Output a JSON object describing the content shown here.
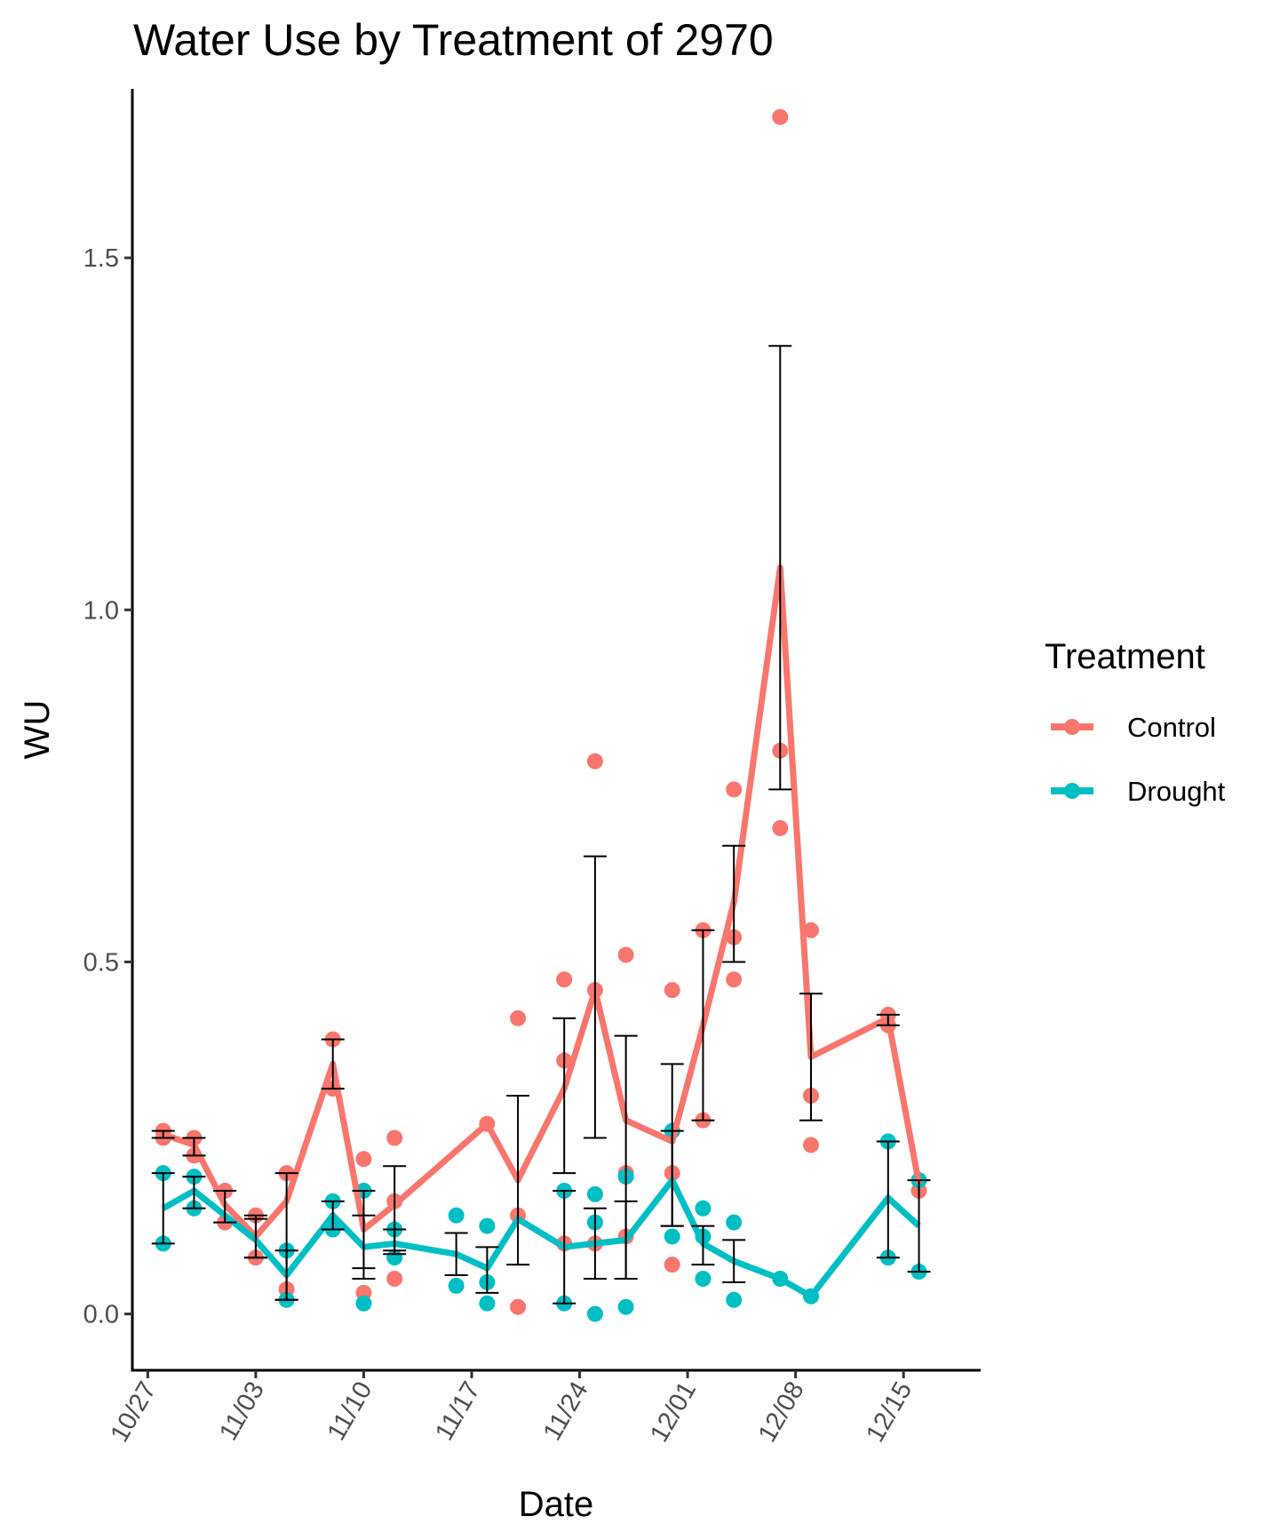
{
  "chart_data": {
    "type": "line",
    "title": "Water Use by Treatment of  2970",
    "xlabel": "Date",
    "ylabel": "WU",
    "ylim": [
      -0.08,
      1.74
    ],
    "xlim": [
      "2023-10-26",
      "2023-12-20"
    ],
    "y_ticks": [
      0.0,
      0.5,
      1.0,
      1.5
    ],
    "y_tick_labels": [
      "0.0",
      "0.5",
      "1.0",
      "1.5"
    ],
    "x_ticks": [
      "2023-10-27",
      "2023-11-03",
      "2023-11-10",
      "2023-11-17",
      "2023-11-24",
      "2023-12-01",
      "2023-12-08",
      "2023-12-15"
    ],
    "x_tick_labels": [
      "10/27",
      "11/03",
      "11/10",
      "11/17",
      "11/24",
      "12/01",
      "12/08",
      "12/15"
    ],
    "grid": false,
    "legend": {
      "title": "Treatment",
      "position": "right",
      "entries": [
        "Control",
        "Drought"
      ]
    },
    "series": [
      {
        "name": "Control",
        "color": "#F8766D",
        "means": [
          {
            "x": "2023-10-28",
            "y": 0.255
          },
          {
            "x": "2023-10-30",
            "y": 0.24
          },
          {
            "x": "2023-11-01",
            "y": 0.155
          },
          {
            "x": "2023-11-03",
            "y": 0.11
          },
          {
            "x": "2023-11-05",
            "y": 0.16
          },
          {
            "x": "2023-11-08",
            "y": 0.355
          },
          {
            "x": "2023-11-10",
            "y": 0.12
          },
          {
            "x": "2023-11-12",
            "y": 0.155
          },
          {
            "x": "2023-11-18",
            "y": 0.27
          },
          {
            "x": "2023-11-20",
            "y": 0.19
          },
          {
            "x": "2023-11-23",
            "y": 0.32
          },
          {
            "x": "2023-11-25",
            "y": 0.46
          },
          {
            "x": "2023-11-27",
            "y": 0.275
          },
          {
            "x": "2023-11-30",
            "y": 0.245
          },
          {
            "x": "2023-12-02",
            "y": 0.41
          },
          {
            "x": "2023-12-04",
            "y": 0.585
          },
          {
            "x": "2023-12-07",
            "y": 1.06
          },
          {
            "x": "2023-12-09",
            "y": 0.365
          },
          {
            "x": "2023-12-14",
            "y": 0.42
          },
          {
            "x": "2023-12-16",
            "y": 0.185
          }
        ],
        "errors": [
          {
            "x": "2023-10-28",
            "low": 0.25,
            "high": 0.26
          },
          {
            "x": "2023-10-30",
            "low": 0.225,
            "high": 0.25
          },
          {
            "x": "2023-11-01",
            "low": 0.13,
            "high": 0.175
          },
          {
            "x": "2023-11-03",
            "low": 0.08,
            "high": 0.14
          },
          {
            "x": "2023-11-05",
            "low": 0.02,
            "high": 0.2
          },
          {
            "x": "2023-11-08",
            "low": 0.32,
            "high": 0.39
          },
          {
            "x": "2023-11-10",
            "low": 0.05,
            "high": 0.14
          },
          {
            "x": "2023-11-12",
            "low": 0.09,
            "high": 0.21
          },
          {
            "x": "2023-11-20",
            "low": 0.07,
            "high": 0.31
          },
          {
            "x": "2023-11-23",
            "low": 0.2,
            "high": 0.42
          },
          {
            "x": "2023-11-25",
            "low": 0.25,
            "high": 0.65
          },
          {
            "x": "2023-11-27",
            "low": 0.05,
            "high": 0.395
          },
          {
            "x": "2023-11-30",
            "low": 0.125,
            "high": 0.355
          },
          {
            "x": "2023-12-02",
            "low": 0.275,
            "high": 0.545
          },
          {
            "x": "2023-12-04",
            "low": 0.5,
            "high": 0.665
          },
          {
            "x": "2023-12-07",
            "low": 0.745,
            "high": 1.375
          },
          {
            "x": "2023-12-09",
            "low": 0.275,
            "high": 0.455
          },
          {
            "x": "2023-12-14",
            "low": 0.41,
            "high": 0.425
          }
        ],
        "points": [
          {
            "x": "2023-10-28",
            "y": 0.26
          },
          {
            "x": "2023-10-28",
            "y": 0.25
          },
          {
            "x": "2023-10-30",
            "y": 0.25
          },
          {
            "x": "2023-10-30",
            "y": 0.225
          },
          {
            "x": "2023-11-01",
            "y": 0.175
          },
          {
            "x": "2023-11-01",
            "y": 0.13
          },
          {
            "x": "2023-11-03",
            "y": 0.14
          },
          {
            "x": "2023-11-03",
            "y": 0.08
          },
          {
            "x": "2023-11-05",
            "y": 0.2
          },
          {
            "x": "2023-11-05",
            "y": 0.035
          },
          {
            "x": "2023-11-08",
            "y": 0.39
          },
          {
            "x": "2023-11-08",
            "y": 0.32
          },
          {
            "x": "2023-11-10",
            "y": 0.22
          },
          {
            "x": "2023-11-10",
            "y": 0.03
          },
          {
            "x": "2023-11-12",
            "y": 0.25
          },
          {
            "x": "2023-11-12",
            "y": 0.16
          },
          {
            "x": "2023-11-12",
            "y": 0.05
          },
          {
            "x": "2023-11-18",
            "y": 0.27
          },
          {
            "x": "2023-11-20",
            "y": 0.42
          },
          {
            "x": "2023-11-20",
            "y": 0.14
          },
          {
            "x": "2023-11-20",
            "y": 0.01
          },
          {
            "x": "2023-11-23",
            "y": 0.475
          },
          {
            "x": "2023-11-23",
            "y": 0.36
          },
          {
            "x": "2023-11-23",
            "y": 0.1
          },
          {
            "x": "2023-11-25",
            "y": 0.785
          },
          {
            "x": "2023-11-25",
            "y": 0.46
          },
          {
            "x": "2023-11-25",
            "y": 0.1
          },
          {
            "x": "2023-11-27",
            "y": 0.51
          },
          {
            "x": "2023-11-27",
            "y": 0.2
          },
          {
            "x": "2023-11-27",
            "y": 0.11
          },
          {
            "x": "2023-11-30",
            "y": 0.46
          },
          {
            "x": "2023-11-30",
            "y": 0.2
          },
          {
            "x": "2023-11-30",
            "y": 0.07
          },
          {
            "x": "2023-12-02",
            "y": 0.545
          },
          {
            "x": "2023-12-02",
            "y": 0.275
          },
          {
            "x": "2023-12-04",
            "y": 0.745
          },
          {
            "x": "2023-12-04",
            "y": 0.535
          },
          {
            "x": "2023-12-04",
            "y": 0.475
          },
          {
            "x": "2023-12-07",
            "y": 1.7
          },
          {
            "x": "2023-12-07",
            "y": 0.8
          },
          {
            "x": "2023-12-07",
            "y": 0.69
          },
          {
            "x": "2023-12-09",
            "y": 0.545
          },
          {
            "x": "2023-12-09",
            "y": 0.31
          },
          {
            "x": "2023-12-09",
            "y": 0.24
          },
          {
            "x": "2023-12-14",
            "y": 0.425
          },
          {
            "x": "2023-12-14",
            "y": 0.41
          },
          {
            "x": "2023-12-16",
            "y": 0.175
          }
        ]
      },
      {
        "name": "Drought",
        "color": "#00BFC4",
        "means": [
          {
            "x": "2023-10-28",
            "y": 0.15
          },
          {
            "x": "2023-10-30",
            "y": 0.175
          },
          {
            "x": "2023-11-01",
            "y": 0.14
          },
          {
            "x": "2023-11-03",
            "y": 0.105
          },
          {
            "x": "2023-11-05",
            "y": 0.055
          },
          {
            "x": "2023-11-08",
            "y": 0.14
          },
          {
            "x": "2023-11-10",
            "y": 0.095
          },
          {
            "x": "2023-11-12",
            "y": 0.1
          },
          {
            "x": "2023-11-16",
            "y": 0.085
          },
          {
            "x": "2023-11-18",
            "y": 0.065
          },
          {
            "x": "2023-11-20",
            "y": 0.135
          },
          {
            "x": "2023-11-23",
            "y": 0.095
          },
          {
            "x": "2023-11-27",
            "y": 0.105
          },
          {
            "x": "2023-11-30",
            "y": 0.19
          },
          {
            "x": "2023-12-02",
            "y": 0.1
          },
          {
            "x": "2023-12-04",
            "y": 0.075
          },
          {
            "x": "2023-12-07",
            "y": 0.05
          },
          {
            "x": "2023-12-09",
            "y": 0.025
          },
          {
            "x": "2023-12-14",
            "y": 0.165
          },
          {
            "x": "2023-12-16",
            "y": 0.125
          }
        ],
        "errors": [
          {
            "x": "2023-10-28",
            "low": 0.1,
            "high": 0.2
          },
          {
            "x": "2023-10-30",
            "low": 0.15,
            "high": 0.195
          },
          {
            "x": "2023-11-03",
            "low": 0.08,
            "high": 0.135
          },
          {
            "x": "2023-11-05",
            "low": 0.02,
            "high": 0.09
          },
          {
            "x": "2023-11-08",
            "low": 0.12,
            "high": 0.16
          },
          {
            "x": "2023-11-10",
            "low": 0.065,
            "high": 0.175
          },
          {
            "x": "2023-11-12",
            "low": 0.085,
            "high": 0.12
          },
          {
            "x": "2023-11-16",
            "low": 0.055,
            "high": 0.115
          },
          {
            "x": "2023-11-18",
            "low": 0.03,
            "high": 0.095
          },
          {
            "x": "2023-11-23",
            "low": 0.015,
            "high": 0.175
          },
          {
            "x": "2023-11-25",
            "low": 0.05,
            "high": 0.15
          },
          {
            "x": "2023-11-27",
            "low": 0.05,
            "high": 0.16
          },
          {
            "x": "2023-11-30",
            "low": 0.125,
            "high": 0.26
          },
          {
            "x": "2023-12-02",
            "low": 0.07,
            "high": 0.125
          },
          {
            "x": "2023-12-04",
            "low": 0.045,
            "high": 0.105
          },
          {
            "x": "2023-12-14",
            "low": 0.08,
            "high": 0.245
          },
          {
            "x": "2023-12-16",
            "low": 0.06,
            "high": 0.19
          }
        ],
        "points": [
          {
            "x": "2023-10-28",
            "y": 0.2
          },
          {
            "x": "2023-10-28",
            "y": 0.1
          },
          {
            "x": "2023-10-30",
            "y": 0.195
          },
          {
            "x": "2023-10-30",
            "y": 0.15
          },
          {
            "x": "2023-11-05",
            "y": 0.09
          },
          {
            "x": "2023-11-05",
            "y": 0.02
          },
          {
            "x": "2023-11-08",
            "y": 0.16
          },
          {
            "x": "2023-11-08",
            "y": 0.12
          },
          {
            "x": "2023-11-10",
            "y": 0.175
          },
          {
            "x": "2023-11-10",
            "y": 0.015
          },
          {
            "x": "2023-11-12",
            "y": 0.12
          },
          {
            "x": "2023-11-12",
            "y": 0.08
          },
          {
            "x": "2023-11-16",
            "y": 0.14
          },
          {
            "x": "2023-11-16",
            "y": 0.04
          },
          {
            "x": "2023-11-18",
            "y": 0.125
          },
          {
            "x": "2023-11-18",
            "y": 0.045
          },
          {
            "x": "2023-11-18",
            "y": 0.015
          },
          {
            "x": "2023-11-23",
            "y": 0.175
          },
          {
            "x": "2023-11-23",
            "y": 0.015
          },
          {
            "x": "2023-11-25",
            "y": 0.17
          },
          {
            "x": "2023-11-25",
            "y": 0.13
          },
          {
            "x": "2023-11-25",
            "y": 0.0
          },
          {
            "x": "2023-11-27",
            "y": 0.195
          },
          {
            "x": "2023-11-27",
            "y": 0.01
          },
          {
            "x": "2023-11-30",
            "y": 0.26
          },
          {
            "x": "2023-11-30",
            "y": 0.11
          },
          {
            "x": "2023-12-02",
            "y": 0.15
          },
          {
            "x": "2023-12-02",
            "y": 0.11
          },
          {
            "x": "2023-12-02",
            "y": 0.05
          },
          {
            "x": "2023-12-04",
            "y": 0.13
          },
          {
            "x": "2023-12-04",
            "y": 0.02
          },
          {
            "x": "2023-12-07",
            "y": 0.05
          },
          {
            "x": "2023-12-09",
            "y": 0.025
          },
          {
            "x": "2023-12-14",
            "y": 0.245
          },
          {
            "x": "2023-12-14",
            "y": 0.08
          },
          {
            "x": "2023-12-16",
            "y": 0.19
          },
          {
            "x": "2023-12-16",
            "y": 0.06
          }
        ]
      }
    ]
  }
}
